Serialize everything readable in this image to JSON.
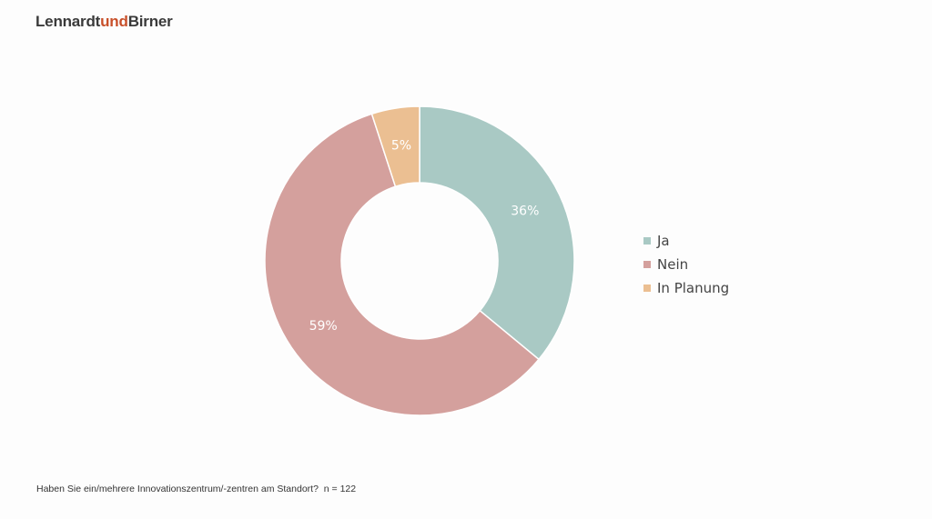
{
  "brand": {
    "part1": "Lennardt",
    "part2": "und",
    "part3": "Birner",
    "color_dark": "#3a3a3a",
    "color_accent": "#c8502a"
  },
  "chart_data": {
    "type": "pie",
    "donut": true,
    "categories": [
      "Ja",
      "Nein",
      "In Planung"
    ],
    "values": [
      36,
      59,
      5
    ],
    "labels": [
      "36%",
      "59%",
      "5%"
    ],
    "colors": [
      "#a9c9c4",
      "#d4a09d",
      "#ebbf92"
    ],
    "unit": "%",
    "legend_position": "right"
  },
  "footnote": {
    "question": "Haben Sie ein/mehrere Innovationszentrum/-zentren am Standort?",
    "sample": "n = 122"
  }
}
